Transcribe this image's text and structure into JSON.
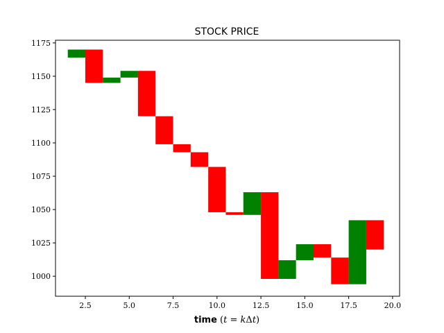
{
  "chart_data": {
    "type": "bar",
    "title": "STOCK PRICE",
    "xlabel": {
      "bold": "time",
      "open": " (",
      "var_t": "t",
      "eq": " = ",
      "var_k": "k",
      "delta": "Δ",
      "var_t2": "t",
      "close": ")"
    },
    "ylabel": "",
    "xlim": [
      0.8,
      20.4
    ],
    "ylim": [
      985,
      1177
    ],
    "xticks": [
      2.5,
      5.0,
      7.5,
      10.0,
      12.5,
      15.0,
      17.5,
      20.0
    ],
    "xtick_labels": [
      "2.5",
      "5.0",
      "7.5",
      "10.0",
      "12.5",
      "15.0",
      "17.5",
      "20.0"
    ],
    "yticks": [
      1000,
      1025,
      1050,
      1075,
      1100,
      1125,
      1150,
      1175
    ],
    "ytick_labels": [
      "1000",
      "1025",
      "1050",
      "1075",
      "1100",
      "1125",
      "1150",
      "1175"
    ],
    "bar_width": 1.0,
    "grid": false,
    "colors": {
      "up": "#008000",
      "down": "#ff0000"
    },
    "series": [
      {
        "t": 2,
        "open": 1164,
        "close": 1170,
        "direction": "up"
      },
      {
        "t": 3,
        "open": 1170,
        "close": 1145,
        "direction": "down"
      },
      {
        "t": 4,
        "open": 1145,
        "close": 1149,
        "direction": "up"
      },
      {
        "t": 5,
        "open": 1149,
        "close": 1154,
        "direction": "up"
      },
      {
        "t": 6,
        "open": 1154,
        "close": 1120,
        "direction": "down"
      },
      {
        "t": 7,
        "open": 1120,
        "close": 1099,
        "direction": "down"
      },
      {
        "t": 8,
        "open": 1099,
        "close": 1093,
        "direction": "down"
      },
      {
        "t": 9,
        "open": 1093,
        "close": 1082,
        "direction": "down"
      },
      {
        "t": 10,
        "open": 1082,
        "close": 1048,
        "direction": "down"
      },
      {
        "t": 11,
        "open": 1048,
        "close": 1046,
        "direction": "down"
      },
      {
        "t": 12,
        "open": 1046,
        "close": 1063,
        "direction": "up"
      },
      {
        "t": 13,
        "open": 1063,
        "close": 998,
        "direction": "down"
      },
      {
        "t": 14,
        "open": 998,
        "close": 1012,
        "direction": "up"
      },
      {
        "t": 15,
        "open": 1012,
        "close": 1024,
        "direction": "up"
      },
      {
        "t": 16,
        "open": 1024,
        "close": 1014,
        "direction": "down"
      },
      {
        "t": 17,
        "open": 1014,
        "close": 994,
        "direction": "down"
      },
      {
        "t": 18,
        "open": 994,
        "close": 1042,
        "direction": "up"
      },
      {
        "t": 19,
        "open": 1042,
        "close": 1020,
        "direction": "down"
      }
    ]
  }
}
